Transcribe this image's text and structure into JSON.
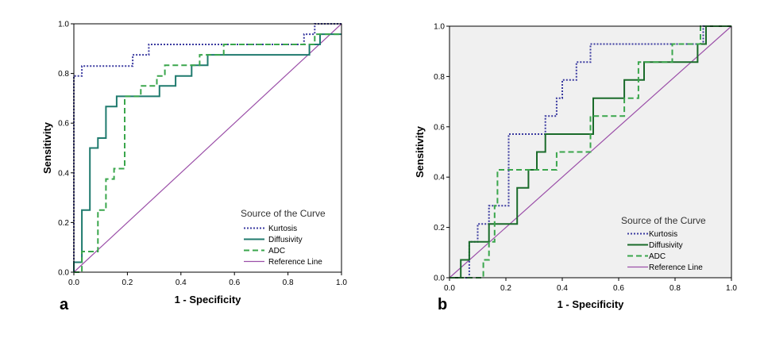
{
  "chart_data": [
    {
      "panel": "a",
      "type": "line",
      "xlabel": "1 - Specificity",
      "ylabel": "Sensitivity",
      "xlim": [
        0,
        1
      ],
      "ylim": [
        0,
        1
      ],
      "x_ticks": [
        "0.0",
        "0.2",
        "0.4",
        "0.6",
        "0.8",
        "1.0"
      ],
      "y_ticks": [
        "0.0",
        "0.2",
        "0.4",
        "0.6",
        "0.8",
        "1.0"
      ],
      "legend_title": "Source of the Curve",
      "background": "#ffffff",
      "series": [
        {
          "name": "Kurtosis",
          "color": "#3b3ba0",
          "style": "dotted",
          "points": [
            [
              0,
              0
            ],
            [
              0,
              0.79
            ],
            [
              0.03,
              0.79
            ],
            [
              0.03,
              0.83
            ],
            [
              0.22,
              0.83
            ],
            [
              0.22,
              0.875
            ],
            [
              0.28,
              0.875
            ],
            [
              0.28,
              0.917
            ],
            [
              0.86,
              0.917
            ],
            [
              0.86,
              0.958
            ],
            [
              0.9,
              0.958
            ],
            [
              0.9,
              1.0
            ],
            [
              1.0,
              1.0
            ]
          ]
        },
        {
          "name": "Diffusivity",
          "color": "#1f7a6e",
          "style": "solid",
          "points": [
            [
              0,
              0
            ],
            [
              0,
              0.04
            ],
            [
              0.03,
              0.04
            ],
            [
              0.03,
              0.25
            ],
            [
              0.06,
              0.25
            ],
            [
              0.06,
              0.5
            ],
            [
              0.09,
              0.5
            ],
            [
              0.09,
              0.54
            ],
            [
              0.12,
              0.54
            ],
            [
              0.12,
              0.667
            ],
            [
              0.16,
              0.667
            ],
            [
              0.16,
              0.708
            ],
            [
              0.32,
              0.708
            ],
            [
              0.32,
              0.75
            ],
            [
              0.38,
              0.75
            ],
            [
              0.38,
              0.79
            ],
            [
              0.44,
              0.79
            ],
            [
              0.44,
              0.833
            ],
            [
              0.5,
              0.833
            ],
            [
              0.5,
              0.875
            ],
            [
              0.88,
              0.875
            ],
            [
              0.88,
              0.917
            ],
            [
              0.92,
              0.917
            ],
            [
              0.92,
              0.958
            ],
            [
              1.0,
              0.958
            ]
          ]
        },
        {
          "name": "ADC",
          "color": "#3aa64c",
          "style": "dashed",
          "points": [
            [
              0,
              0
            ],
            [
              0.03,
              0
            ],
            [
              0.03,
              0.083
            ],
            [
              0.09,
              0.083
            ],
            [
              0.09,
              0.25
            ],
            [
              0.12,
              0.25
            ],
            [
              0.12,
              0.375
            ],
            [
              0.15,
              0.375
            ],
            [
              0.15,
              0.417
            ],
            [
              0.19,
              0.417
            ],
            [
              0.19,
              0.708
            ],
            [
              0.25,
              0.708
            ],
            [
              0.25,
              0.75
            ],
            [
              0.31,
              0.75
            ],
            [
              0.31,
              0.79
            ],
            [
              0.34,
              0.79
            ],
            [
              0.34,
              0.833
            ],
            [
              0.47,
              0.833
            ],
            [
              0.47,
              0.875
            ],
            [
              0.56,
              0.875
            ],
            [
              0.56,
              0.917
            ],
            [
              0.9,
              0.917
            ],
            [
              0.9,
              0.958
            ],
            [
              1.0,
              0.958
            ]
          ]
        },
        {
          "name": "Reference Line",
          "color": "#9b4fa8",
          "style": "solid",
          "points": [
            [
              0,
              0
            ],
            [
              1,
              1
            ]
          ]
        }
      ]
    },
    {
      "panel": "b",
      "type": "line",
      "xlabel": "1 - Specificity",
      "ylabel": "Sensitivity",
      "xlim": [
        0,
        1
      ],
      "ylim": [
        0,
        1
      ],
      "x_ticks": [
        "0.0",
        "0.2",
        "0.4",
        "0.6",
        "0.8",
        "1.0"
      ],
      "y_ticks": [
        "0.0",
        "0.2",
        "0.4",
        "0.6",
        "0.8",
        "1.0"
      ],
      "legend_title": "Source of the Curve",
      "background": "#f0f0f0",
      "series": [
        {
          "name": "Kurtosis",
          "color": "#3b3ba0",
          "style": "dotted",
          "points": [
            [
              0,
              0
            ],
            [
              0.07,
              0
            ],
            [
              0.07,
              0.143
            ],
            [
              0.1,
              0.143
            ],
            [
              0.1,
              0.214
            ],
            [
              0.14,
              0.214
            ],
            [
              0.14,
              0.286
            ],
            [
              0.21,
              0.286
            ],
            [
              0.21,
              0.571
            ],
            [
              0.34,
              0.571
            ],
            [
              0.34,
              0.643
            ],
            [
              0.38,
              0.643
            ],
            [
              0.38,
              0.714
            ],
            [
              0.4,
              0.714
            ],
            [
              0.4,
              0.786
            ],
            [
              0.45,
              0.786
            ],
            [
              0.45,
              0.857
            ],
            [
              0.5,
              0.857
            ],
            [
              0.5,
              0.929
            ],
            [
              0.9,
              0.929
            ],
            [
              0.9,
              1.0
            ],
            [
              1.0,
              1.0
            ]
          ]
        },
        {
          "name": "Diffusivity",
          "color": "#1a6b2a",
          "style": "solid",
          "points": [
            [
              0,
              0
            ],
            [
              0.04,
              0
            ],
            [
              0.04,
              0.071
            ],
            [
              0.07,
              0.071
            ],
            [
              0.07,
              0.143
            ],
            [
              0.14,
              0.143
            ],
            [
              0.14,
              0.214
            ],
            [
              0.24,
              0.214
            ],
            [
              0.24,
              0.357
            ],
            [
              0.28,
              0.357
            ],
            [
              0.28,
              0.429
            ],
            [
              0.31,
              0.429
            ],
            [
              0.31,
              0.5
            ],
            [
              0.34,
              0.5
            ],
            [
              0.34,
              0.571
            ],
            [
              0.51,
              0.571
            ],
            [
              0.51,
              0.714
            ],
            [
              0.62,
              0.714
            ],
            [
              0.62,
              0.786
            ],
            [
              0.69,
              0.786
            ],
            [
              0.69,
              0.857
            ],
            [
              0.88,
              0.857
            ],
            [
              0.88,
              0.929
            ],
            [
              0.91,
              0.929
            ],
            [
              0.91,
              1.0
            ],
            [
              1.0,
              1.0
            ]
          ]
        },
        {
          "name": "ADC",
          "color": "#3aa64c",
          "style": "dashed",
          "points": [
            [
              0,
              0
            ],
            [
              0.12,
              0
            ],
            [
              0.12,
              0.071
            ],
            [
              0.14,
              0.071
            ],
            [
              0.14,
              0.143
            ],
            [
              0.16,
              0.143
            ],
            [
              0.16,
              0.286
            ],
            [
              0.17,
              0.286
            ],
            [
              0.17,
              0.429
            ],
            [
              0.38,
              0.429
            ],
            [
              0.38,
              0.5
            ],
            [
              0.5,
              0.5
            ],
            [
              0.5,
              0.643
            ],
            [
              0.62,
              0.643
            ],
            [
              0.62,
              0.714
            ],
            [
              0.67,
              0.714
            ],
            [
              0.67,
              0.857
            ],
            [
              0.79,
              0.857
            ],
            [
              0.79,
              0.929
            ],
            [
              0.89,
              0.929
            ],
            [
              0.89,
              1.0
            ],
            [
              1.0,
              1.0
            ]
          ]
        },
        {
          "name": "Reference Line",
          "color": "#9b4fa8",
          "style": "solid",
          "points": [
            [
              0,
              0
            ],
            [
              1,
              1
            ]
          ]
        }
      ]
    }
  ]
}
